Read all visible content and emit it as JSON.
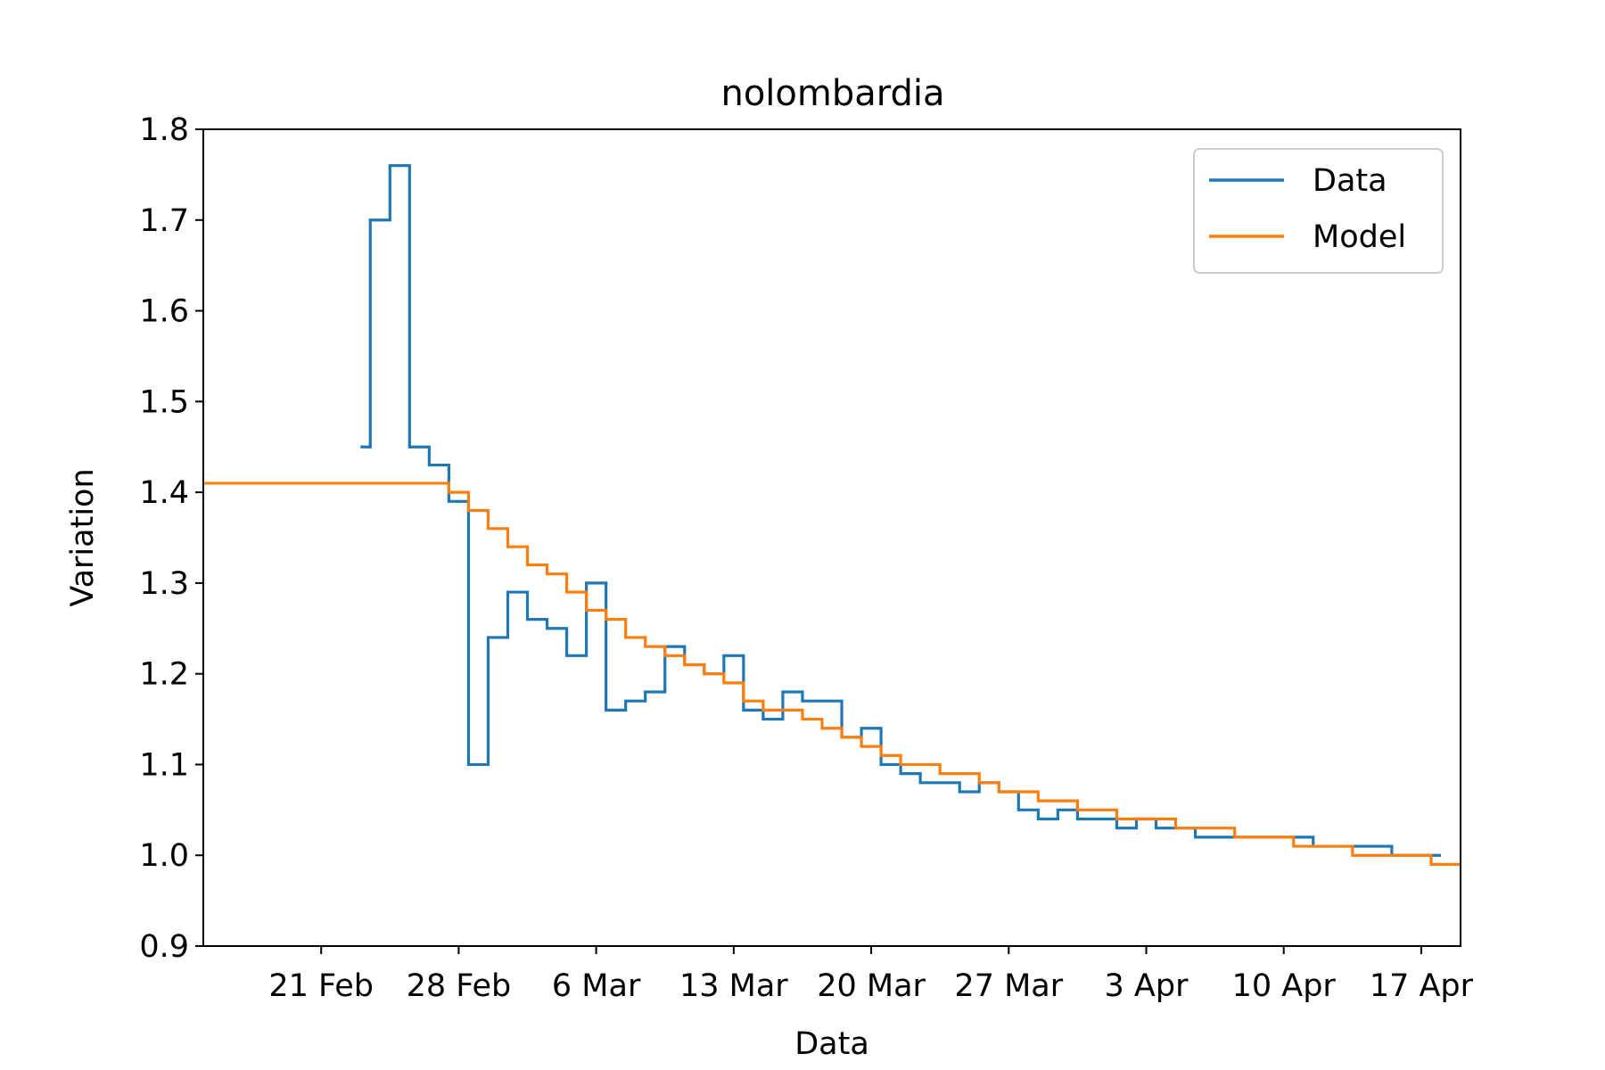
{
  "chart_data": {
    "type": "line",
    "title": "nolombardia",
    "xlabel": "Data",
    "ylabel": "Variation",
    "ylim": [
      0.9,
      1.8
    ],
    "xlim": [
      "2020-02-15",
      "2020-04-19"
    ],
    "grid": false,
    "legend_position": "top-right",
    "x_ticks": [
      {
        "date": "2020-02-21",
        "label": "21 Feb"
      },
      {
        "date": "2020-02-28",
        "label": "28 Feb"
      },
      {
        "date": "2020-03-06",
        "label": "6 Mar"
      },
      {
        "date": "2020-03-13",
        "label": "13 Mar"
      },
      {
        "date": "2020-03-20",
        "label": "20 Mar"
      },
      {
        "date": "2020-03-27",
        "label": "27 Mar"
      },
      {
        "date": "2020-04-03",
        "label": "3 Apr"
      },
      {
        "date": "2020-04-10",
        "label": "10 Apr"
      },
      {
        "date": "2020-04-17",
        "label": "17 Apr"
      }
    ],
    "y_ticks": [
      "0.9",
      "1.0",
      "1.1",
      "1.2",
      "1.3",
      "1.4",
      "1.5",
      "1.6",
      "1.7",
      "1.8"
    ],
    "series": [
      {
        "name": "Data",
        "color": "#1f77b4",
        "drawstyle": "steps-mid",
        "x": [
          "2020-02-23",
          "2020-02-24",
          "2020-02-25",
          "2020-02-26",
          "2020-02-27",
          "2020-02-28",
          "2020-02-29",
          "2020-03-01",
          "2020-03-02",
          "2020-03-03",
          "2020-03-04",
          "2020-03-05",
          "2020-03-06",
          "2020-03-07",
          "2020-03-08",
          "2020-03-09",
          "2020-03-10",
          "2020-03-11",
          "2020-03-12",
          "2020-03-13",
          "2020-03-14",
          "2020-03-15",
          "2020-03-16",
          "2020-03-17",
          "2020-03-18",
          "2020-03-19",
          "2020-03-20",
          "2020-03-21",
          "2020-03-22",
          "2020-03-23",
          "2020-03-24",
          "2020-03-25",
          "2020-03-26",
          "2020-03-27",
          "2020-03-28",
          "2020-03-29",
          "2020-03-30",
          "2020-03-31",
          "2020-04-01",
          "2020-04-02",
          "2020-04-03",
          "2020-04-04",
          "2020-04-05",
          "2020-04-06",
          "2020-04-07",
          "2020-04-08",
          "2020-04-09",
          "2020-04-10",
          "2020-04-11",
          "2020-04-12",
          "2020-04-13",
          "2020-04-14",
          "2020-04-15",
          "2020-04-16",
          "2020-04-17",
          "2020-04-18"
        ],
        "y": [
          1.45,
          1.7,
          1.76,
          1.45,
          1.43,
          1.39,
          1.1,
          1.24,
          1.29,
          1.26,
          1.25,
          1.22,
          1.3,
          1.16,
          1.17,
          1.18,
          1.23,
          1.21,
          1.2,
          1.22,
          1.16,
          1.15,
          1.18,
          1.17,
          1.17,
          1.13,
          1.14,
          1.1,
          1.09,
          1.08,
          1.08,
          1.07,
          1.08,
          1.07,
          1.05,
          1.04,
          1.05,
          1.04,
          1.04,
          1.03,
          1.04,
          1.03,
          1.03,
          1.02,
          1.02,
          1.02,
          1.02,
          1.02,
          1.02,
          1.01,
          1.01,
          1.01,
          1.01,
          1.0,
          1.0,
          1.0
        ]
      },
      {
        "name": "Model",
        "color": "#ff7f0e",
        "drawstyle": "steps-mid",
        "x": [
          "2020-02-15",
          "2020-02-16",
          "2020-02-17",
          "2020-02-18",
          "2020-02-19",
          "2020-02-20",
          "2020-02-21",
          "2020-02-22",
          "2020-02-23",
          "2020-02-24",
          "2020-02-25",
          "2020-02-26",
          "2020-02-27",
          "2020-02-28",
          "2020-02-29",
          "2020-03-01",
          "2020-03-02",
          "2020-03-03",
          "2020-03-04",
          "2020-03-05",
          "2020-03-06",
          "2020-03-07",
          "2020-03-08",
          "2020-03-09",
          "2020-03-10",
          "2020-03-11",
          "2020-03-12",
          "2020-03-13",
          "2020-03-14",
          "2020-03-15",
          "2020-03-16",
          "2020-03-17",
          "2020-03-18",
          "2020-03-19",
          "2020-03-20",
          "2020-03-21",
          "2020-03-22",
          "2020-03-23",
          "2020-03-24",
          "2020-03-25",
          "2020-03-26",
          "2020-03-27",
          "2020-03-28",
          "2020-03-29",
          "2020-03-30",
          "2020-03-31",
          "2020-04-01",
          "2020-04-02",
          "2020-04-03",
          "2020-04-04",
          "2020-04-05",
          "2020-04-06",
          "2020-04-07",
          "2020-04-08",
          "2020-04-09",
          "2020-04-10",
          "2020-04-11",
          "2020-04-12",
          "2020-04-13",
          "2020-04-14",
          "2020-04-15",
          "2020-04-16",
          "2020-04-17",
          "2020-04-18",
          "2020-04-19"
        ],
        "y": [
          1.41,
          1.41,
          1.41,
          1.41,
          1.41,
          1.41,
          1.41,
          1.41,
          1.41,
          1.41,
          1.41,
          1.41,
          1.41,
          1.4,
          1.38,
          1.36,
          1.34,
          1.32,
          1.31,
          1.29,
          1.27,
          1.26,
          1.24,
          1.23,
          1.22,
          1.21,
          1.2,
          1.19,
          1.17,
          1.16,
          1.16,
          1.15,
          1.14,
          1.13,
          1.12,
          1.11,
          1.1,
          1.1,
          1.09,
          1.09,
          1.08,
          1.07,
          1.07,
          1.06,
          1.06,
          1.05,
          1.05,
          1.04,
          1.04,
          1.04,
          1.03,
          1.03,
          1.03,
          1.02,
          1.02,
          1.02,
          1.01,
          1.01,
          1.01,
          1.0,
          1.0,
          1.0,
          1.0,
          0.99,
          0.99
        ]
      }
    ]
  }
}
